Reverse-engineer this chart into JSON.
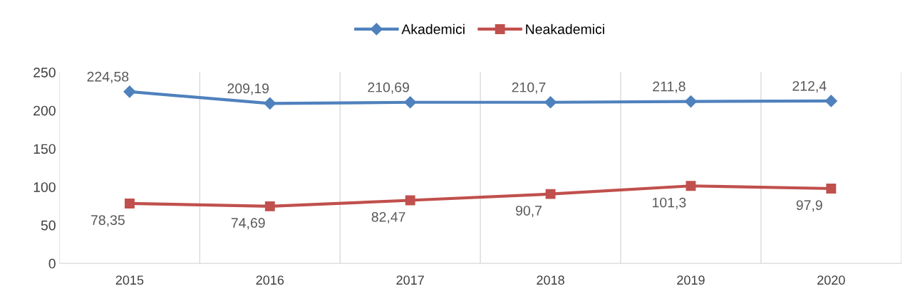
{
  "chart_data": {
    "type": "line",
    "categories": [
      "2015",
      "2016",
      "2017",
      "2018",
      "2019",
      "2020"
    ],
    "series": [
      {
        "name": "Akademici",
        "color": "#4f81bd",
        "marker": "diamond",
        "values": [
          224.58,
          209.19,
          210.69,
          210.7,
          211.8,
          212.4
        ],
        "value_labels": [
          "224,58",
          "209,19",
          "210,69",
          "210,7",
          "211,8",
          "212,4"
        ]
      },
      {
        "name": "Neakademici",
        "color": "#c0504d",
        "marker": "square",
        "values": [
          78.35,
          74.69,
          82.47,
          90.7,
          101.3,
          97.9
        ],
        "value_labels": [
          "78,35",
          "74,69",
          "82,47",
          "90,7",
          "101,3",
          "97,9"
        ]
      }
    ],
    "ylim": [
      0,
      250
    ],
    "yticks": [
      0,
      50,
      100,
      150,
      200,
      250
    ],
    "grid": "x",
    "legend": "top",
    "line_style": "solid"
  }
}
